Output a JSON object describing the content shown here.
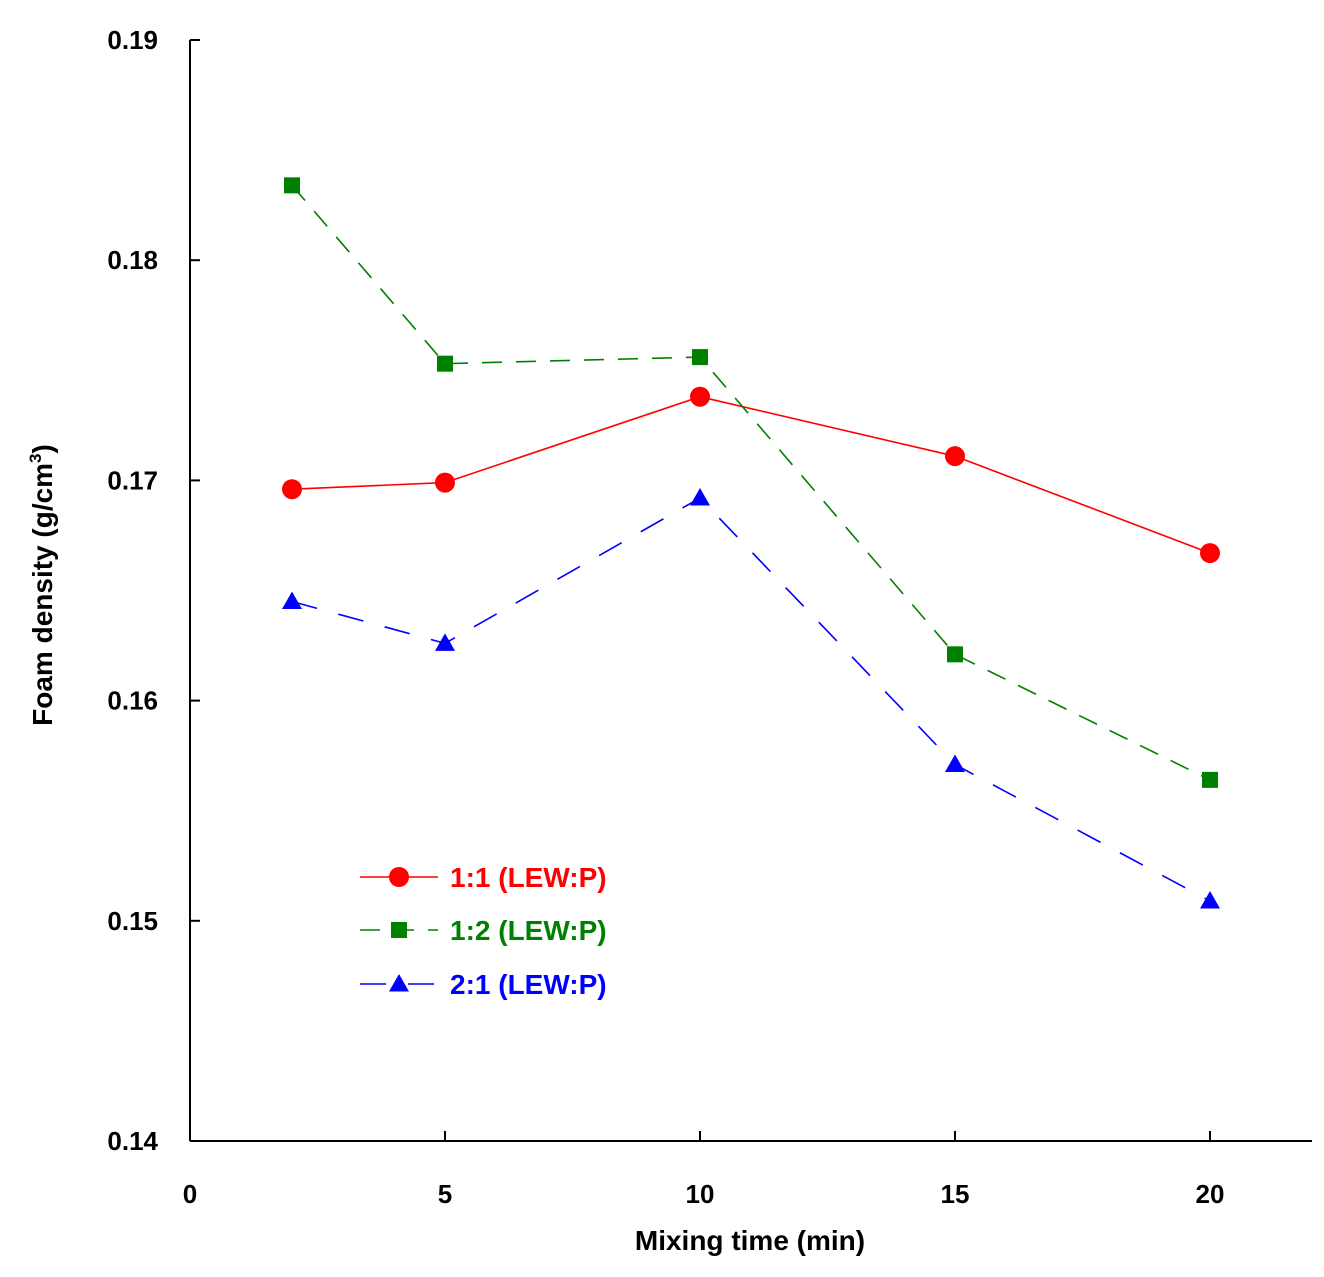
{
  "chart_data": {
    "type": "line",
    "title": "",
    "xlabel": "Mixing time (min)",
    "ylabel": "Foam density (g/cm",
    "ylabel_superscript": "3",
    "ylabel_close": ")",
    "xlim": [
      0,
      22
    ],
    "ylim": [
      0.14,
      0.19
    ],
    "x_ticks": [
      0,
      5,
      10,
      15,
      20
    ],
    "x_tick_labels": [
      "0",
      "5",
      "10",
      "15",
      "20"
    ],
    "y_ticks": [
      0.14,
      0.15,
      0.16,
      0.17,
      0.18,
      0.19
    ],
    "y_tick_labels": [
      "0.14",
      "0.15",
      "0.16",
      "0.17",
      "0.18",
      "0.19"
    ],
    "grid": false,
    "legend_position": "lower-left",
    "x": [
      2,
      5,
      10,
      15,
      20
    ],
    "series": [
      {
        "name": "1:1 (LEW:P)",
        "color": "#ff0000",
        "marker": "circle",
        "line": "solid",
        "values": [
          0.1696,
          0.1699,
          0.1738,
          0.1711,
          0.1667
        ]
      },
      {
        "name": "1:2 (LEW:P)",
        "color": "#008000",
        "marker": "square",
        "line": "dashed",
        "values": [
          0.1834,
          0.1753,
          0.1756,
          0.1621,
          0.1564
        ]
      },
      {
        "name": "2:1 (LEW:P)",
        "color": "#0000ff",
        "marker": "triangle",
        "line": "dashed",
        "values": [
          0.1645,
          0.1626,
          0.1692,
          0.1571,
          0.1509
        ]
      }
    ]
  }
}
